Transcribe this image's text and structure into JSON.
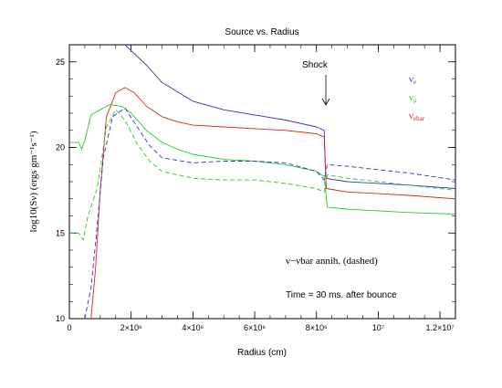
{
  "chart_data": {
    "type": "line",
    "title": "Source vs. Radius",
    "xlabel": "Radius (cm)",
    "ylabel": "log10(Sν) (ergs gm⁻¹s⁻¹)",
    "xlim": [
      0,
      12500000
    ],
    "ylim": [
      10,
      26
    ],
    "x_ticks": [
      {
        "value": 0,
        "label": "0"
      },
      {
        "value": 2000000,
        "label": "2×10⁶"
      },
      {
        "value": 4000000,
        "label": "4×10⁶"
      },
      {
        "value": 6000000,
        "label": "6×10⁶"
      },
      {
        "value": 8000000,
        "label": "8×10⁶"
      },
      {
        "value": 10000000,
        "label": "10⁷"
      },
      {
        "value": 12000000,
        "label": "1.2×10⁷"
      }
    ],
    "y_ticks": [
      {
        "value": 10,
        "label": "10"
      },
      {
        "value": 15,
        "label": "15"
      },
      {
        "value": 20,
        "label": "20"
      },
      {
        "value": 25,
        "label": "25"
      }
    ],
    "legend": {
      "placement": "top-right",
      "entries": [
        {
          "label": "νe",
          "color": "#3333cc"
        },
        {
          "label": "νμ",
          "color": "#22cc22"
        },
        {
          "label": "νebar",
          "color": "#dd2222"
        }
      ]
    },
    "annotations": [
      {
        "text": "Shock",
        "x": 8400000,
        "y": 25.6
      },
      {
        "text": "ν−νbar annih. (dashed)",
        "x": 9200000,
        "y": 13.3
      },
      {
        "text": "Time = 30 ms. after bounce",
        "x": 9200000,
        "y": 11.3
      }
    ],
    "series": [
      {
        "name": "νe",
        "color": "#3333cc",
        "dash": false,
        "x": [
          1800000,
          2500000,
          3000000,
          4000000,
          5000000,
          6000000,
          7000000,
          8000000,
          8250000,
          8300000,
          9000000,
          10000000,
          11000000,
          12500000
        ],
        "y": [
          26,
          24.8,
          23.8,
          22.7,
          22.2,
          21.9,
          21.6,
          21.2,
          21.0,
          18.2,
          18.0,
          17.9,
          17.8,
          17.6
        ]
      },
      {
        "name": "νebar",
        "color": "#dd2222",
        "dash": false,
        "x": [
          700000,
          850000,
          1000000,
          1200000,
          1500000,
          1800000,
          2100000,
          2500000,
          3000000,
          3500000,
          4000000,
          5000000,
          6000000,
          7000000,
          8000000,
          8250000,
          8320000,
          9000000,
          10000000,
          11000000,
          12500000
        ],
        "y": [
          10,
          13,
          17.5,
          21.8,
          23.2,
          23.5,
          23.2,
          22.4,
          21.8,
          21.5,
          21.3,
          21.2,
          21.1,
          21.0,
          20.8,
          20.6,
          17.6,
          17.4,
          17.3,
          17.2,
          17.0
        ]
      },
      {
        "name": "νμ",
        "color": "#22cc22",
        "dash": false,
        "x": [
          0,
          300000,
          400000,
          500000,
          700000,
          1000000,
          1300000,
          1700000,
          2000000,
          2500000,
          3000000,
          3500000,
          4000000,
          5000000,
          6000000,
          7000000,
          8000000,
          8250000,
          8350000,
          9000000,
          10000000,
          11000000,
          12500000
        ],
        "y": [
          20.3,
          20.3,
          19.9,
          20.4,
          21.9,
          22.2,
          22.5,
          22.4,
          22.0,
          21.0,
          20.3,
          19.9,
          19.6,
          19.3,
          19.2,
          19.0,
          18.6,
          18.3,
          16.5,
          16.4,
          16.3,
          16.2,
          16.1
        ]
      },
      {
        "name": "νe annih.",
        "color": "#3333cc",
        "dash": true,
        "x": [
          500000,
          700000,
          900000,
          1100000,
          1400000,
          1800000,
          2200000,
          2600000,
          3000000,
          4000000,
          5000000,
          6000000,
          7000000,
          8000000,
          8250000,
          8350000,
          9000000,
          10000000,
          11000000,
          12500000
        ],
        "y": [
          10,
          11.8,
          15.4,
          19.4,
          21.8,
          22.3,
          21.2,
          20.1,
          19.4,
          19.1,
          19.2,
          19.2,
          19.1,
          18.6,
          18.1,
          19.0,
          18.9,
          18.7,
          18.5,
          18.1
        ]
      },
      {
        "name": "νμ annih.",
        "color": "#22cc22",
        "dash": true,
        "x": [
          0,
          300000,
          450000,
          600000,
          900000,
          1200000,
          1500000,
          1800000,
          2200000,
          2600000,
          3000000,
          4000000,
          5000000,
          6000000,
          7000000,
          8000000,
          8250000,
          8350000,
          9000000,
          10000000,
          11000000,
          12500000
        ],
        "y": [
          15.0,
          15.0,
          14.6,
          16.0,
          17.6,
          21.2,
          22.2,
          21.6,
          20.2,
          19.2,
          18.6,
          18.2,
          18.1,
          18.1,
          17.9,
          17.6,
          17.4,
          18.4,
          18.2,
          18.0,
          17.8,
          17.5
        ]
      }
    ]
  }
}
